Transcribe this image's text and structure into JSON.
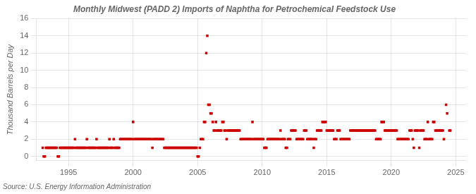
{
  "chart_data": {
    "type": "scatter",
    "title": "Monthly Midwest (PADD 2) Imports of Naphtha for Petrochemical Feedstock Use",
    "ylabel": "Thousand Barrels per Day",
    "annotation": "Source: U.S. Energy Information Administration",
    "color": "#cc0000",
    "marker": "square",
    "grid": true,
    "xlim": [
      1992.5,
      2025.8
    ],
    "ylim": [
      -0.5,
      16
    ],
    "xticks": [
      1995,
      2000,
      2005,
      2010,
      2015,
      2020,
      2025
    ],
    "yticks": [
      0,
      2,
      4,
      6,
      8,
      10,
      12,
      14,
      16
    ],
    "x": [
      1993.0,
      1993.08,
      1993.17,
      1993.25,
      1993.33,
      1993.42,
      1993.5,
      1993.58,
      1993.67,
      1993.75,
      1993.83,
      1993.92,
      1994.0,
      1994.08,
      1994.17,
      1994.25,
      1994.33,
      1994.42,
      1994.5,
      1994.58,
      1994.67,
      1994.75,
      1994.83,
      1994.92,
      1995.0,
      1995.08,
      1995.17,
      1995.25,
      1995.33,
      1995.42,
      1995.5,
      1995.58,
      1995.67,
      1995.75,
      1995.83,
      1995.92,
      1996.0,
      1996.08,
      1996.17,
      1996.25,
      1996.33,
      1996.42,
      1996.5,
      1996.58,
      1996.67,
      1996.75,
      1996.83,
      1996.92,
      1997.0,
      1997.08,
      1997.17,
      1997.25,
      1997.33,
      1997.42,
      1997.5,
      1997.58,
      1997.67,
      1997.75,
      1997.83,
      1997.92,
      1998.0,
      1998.08,
      1998.17,
      1998.25,
      1998.33,
      1998.42,
      1998.5,
      1998.58,
      1998.67,
      1998.75,
      1998.83,
      1998.92,
      1999.0,
      1999.08,
      1999.17,
      1999.25,
      1999.33,
      1999.42,
      1999.5,
      1999.58,
      1999.67,
      1999.75,
      1999.83,
      1999.92,
      2000.0,
      2000.08,
      2000.17,
      2000.25,
      2000.33,
      2000.42,
      2000.5,
      2000.58,
      2000.67,
      2000.75,
      2000.83,
      2000.92,
      2001.0,
      2001.08,
      2001.17,
      2001.25,
      2001.33,
      2001.42,
      2001.5,
      2001.58,
      2001.67,
      2001.75,
      2001.83,
      2001.92,
      2002.0,
      2002.08,
      2002.17,
      2002.25,
      2002.33,
      2002.42,
      2002.5,
      2002.58,
      2002.67,
      2002.75,
      2002.83,
      2002.92,
      2003.0,
      2003.08,
      2003.17,
      2003.25,
      2003.33,
      2003.42,
      2003.5,
      2003.58,
      2003.67,
      2003.75,
      2003.83,
      2003.92,
      2004.0,
      2004.08,
      2004.17,
      2004.25,
      2004.33,
      2004.42,
      2004.5,
      2004.58,
      2004.67,
      2004.75,
      2004.83,
      2004.92,
      2005.0,
      2005.08,
      2005.17,
      2005.25,
      2005.33,
      2005.42,
      2005.5,
      2005.58,
      2005.67,
      2005.75,
      2005.83,
      2005.92,
      2006.0,
      2006.08,
      2006.17,
      2006.25,
      2006.33,
      2006.42,
      2006.5,
      2006.58,
      2006.67,
      2006.75,
      2006.83,
      2006.92,
      2007.0,
      2007.08,
      2007.17,
      2007.25,
      2007.33,
      2007.42,
      2007.5,
      2007.58,
      2007.67,
      2007.75,
      2007.83,
      2007.92,
      2008.0,
      2008.08,
      2008.17,
      2008.25,
      2008.33,
      2008.42,
      2008.5,
      2008.58,
      2008.67,
      2008.75,
      2008.83,
      2008.92,
      2009.0,
      2009.08,
      2009.17,
      2009.25,
      2009.33,
      2009.42,
      2009.5,
      2009.58,
      2009.67,
      2009.75,
      2009.83,
      2009.92,
      2010.0,
      2010.08,
      2010.17,
      2010.25,
      2010.33,
      2010.42,
      2010.5,
      2010.58,
      2010.67,
      2010.75,
      2010.83,
      2010.92,
      2011.0,
      2011.08,
      2011.17,
      2011.25,
      2011.33,
      2011.42,
      2011.5,
      2011.58,
      2011.67,
      2011.75,
      2011.83,
      2011.92,
      2012.0,
      2012.08,
      2012.17,
      2012.25,
      2012.33,
      2012.42,
      2012.5,
      2012.58,
      2012.67,
      2012.75,
      2012.83,
      2012.92,
      2013.0,
      2013.08,
      2013.17,
      2013.25,
      2013.33,
      2013.42,
      2013.5,
      2013.58,
      2013.67,
      2013.75,
      2013.83,
      2013.92,
      2014.0,
      2014.08,
      2014.17,
      2014.25,
      2014.33,
      2014.42,
      2014.5,
      2014.58,
      2014.67,
      2014.75,
      2014.83,
      2014.92,
      2015.0,
      2015.08,
      2015.17,
      2015.25,
      2015.33,
      2015.42,
      2015.5,
      2015.58,
      2015.67,
      2015.75,
      2015.83,
      2015.92,
      2016.0,
      2016.08,
      2016.17,
      2016.25,
      2016.33,
      2016.42,
      2016.5,
      2016.58,
      2016.67,
      2016.75,
      2016.83,
      2016.92,
      2017.0,
      2017.08,
      2017.17,
      2017.25,
      2017.33,
      2017.42,
      2017.5,
      2017.58,
      2017.67,
      2017.75,
      2017.83,
      2017.92,
      2018.0,
      2018.08,
      2018.17,
      2018.25,
      2018.33,
      2018.42,
      2018.5,
      2018.58,
      2018.67,
      2018.75,
      2018.83,
      2018.92,
      2019.0,
      2019.08,
      2019.17,
      2019.25,
      2019.33,
      2019.42,
      2019.5,
      2019.58,
      2019.67,
      2019.75,
      2019.83,
      2019.92,
      2020.0,
      2020.08,
      2020.17,
      2020.25,
      2020.33,
      2020.42,
      2020.5,
      2020.58,
      2020.67,
      2020.75,
      2020.83,
      2020.92,
      2021.0,
      2021.08,
      2021.17,
      2021.25,
      2021.33,
      2021.42,
      2021.5,
      2021.58,
      2021.67,
      2021.75,
      2021.83,
      2021.92,
      2022.0,
      2022.08,
      2022.17,
      2022.25,
      2022.33,
      2022.42,
      2022.5,
      2022.58,
      2022.67,
      2022.75,
      2022.83,
      2022.92,
      2023.0,
      2023.08,
      2023.17,
      2023.25,
      2023.33,
      2023.42,
      2023.5,
      2023.58,
      2023.67,
      2023.75,
      2023.83,
      2023.92,
      2024.0,
      2024.08,
      2024.25,
      2024.33,
      2024.5,
      2024.58
    ],
    "values": [
      1,
      0,
      0,
      1,
      1,
      1,
      1,
      1,
      1,
      1,
      1,
      1,
      1,
      1,
      0,
      0,
      1,
      1,
      1,
      1,
      1,
      1,
      1,
      1,
      1,
      1,
      1,
      1,
      1,
      1,
      2,
      1,
      1,
      1,
      1,
      1,
      1,
      1,
      1,
      1,
      1,
      2,
      1,
      1,
      1,
      1,
      1,
      1,
      1,
      1,
      2,
      1,
      1,
      1,
      1,
      1,
      1,
      1,
      1,
      1,
      1,
      1,
      2,
      1,
      1,
      1,
      2,
      1,
      1,
      1,
      1,
      1,
      2,
      2,
      2,
      2,
      2,
      2,
      2,
      2,
      2,
      2,
      2,
      2,
      4,
      2,
      2,
      2,
      2,
      2,
      2,
      2,
      2,
      2,
      2,
      2,
      2,
      2,
      2,
      2,
      2,
      2,
      1,
      2,
      2,
      2,
      2,
      2,
      2,
      2,
      2,
      2,
      2,
      1,
      1,
      1,
      1,
      1,
      1,
      1,
      1,
      1,
      1,
      1,
      1,
      1,
      1,
      1,
      1,
      1,
      1,
      1,
      1,
      1,
      1,
      1,
      1,
      1,
      1,
      1,
      1,
      1,
      1,
      1,
      0,
      0,
      1,
      2,
      2,
      2,
      4,
      4,
      12,
      14,
      6,
      6,
      5,
      5,
      4,
      3,
      3,
      4,
      3,
      3,
      3,
      3,
      3,
      4,
      4,
      3,
      3,
      2,
      3,
      3,
      3,
      3,
      3,
      3,
      3,
      3,
      3,
      3,
      3,
      3,
      2,
      2,
      2,
      2,
      2,
      2,
      2,
      2,
      2,
      2,
      2,
      4,
      2,
      2,
      2,
      2,
      2,
      2,
      2,
      2,
      2,
      2,
      1,
      1,
      1,
      2,
      2,
      2,
      2,
      2,
      2,
      2,
      2,
      2,
      2,
      2,
      2,
      3,
      2,
      2,
      2,
      2,
      1,
      1,
      2,
      2,
      2,
      3,
      3,
      3,
      3,
      3,
      2,
      2,
      2,
      2,
      2,
      2,
      2,
      3,
      3,
      3,
      2,
      2,
      2,
      2,
      2,
      2,
      1,
      2,
      2,
      3,
      3,
      3,
      3,
      3,
      4,
      4,
      4,
      4,
      3,
      3,
      3,
      3,
      3,
      3,
      3,
      2,
      2,
      2,
      3,
      3,
      3,
      2,
      2,
      2,
      2,
      2,
      2,
      2,
      2,
      2,
      3,
      3,
      3,
      3,
      3,
      3,
      3,
      3,
      3,
      3,
      3,
      3,
      3,
      3,
      3,
      3,
      3,
      3,
      3,
      3,
      3,
      3,
      3,
      3,
      2,
      2,
      2,
      2,
      2,
      4,
      4,
      4,
      3,
      3,
      3,
      3,
      3,
      3,
      3,
      3,
      3,
      3,
      3,
      3,
      2,
      2,
      2,
      2,
      2,
      2,
      2,
      2,
      2,
      2,
      2,
      3,
      3,
      3,
      2,
      1,
      3,
      3,
      3,
      3,
      1,
      3,
      3,
      3,
      3,
      2,
      2,
      2,
      4,
      2,
      2,
      2,
      2,
      4,
      4,
      3,
      3,
      3,
      3,
      3,
      3,
      3,
      3,
      2,
      6,
      5,
      3,
      3
    ]
  }
}
